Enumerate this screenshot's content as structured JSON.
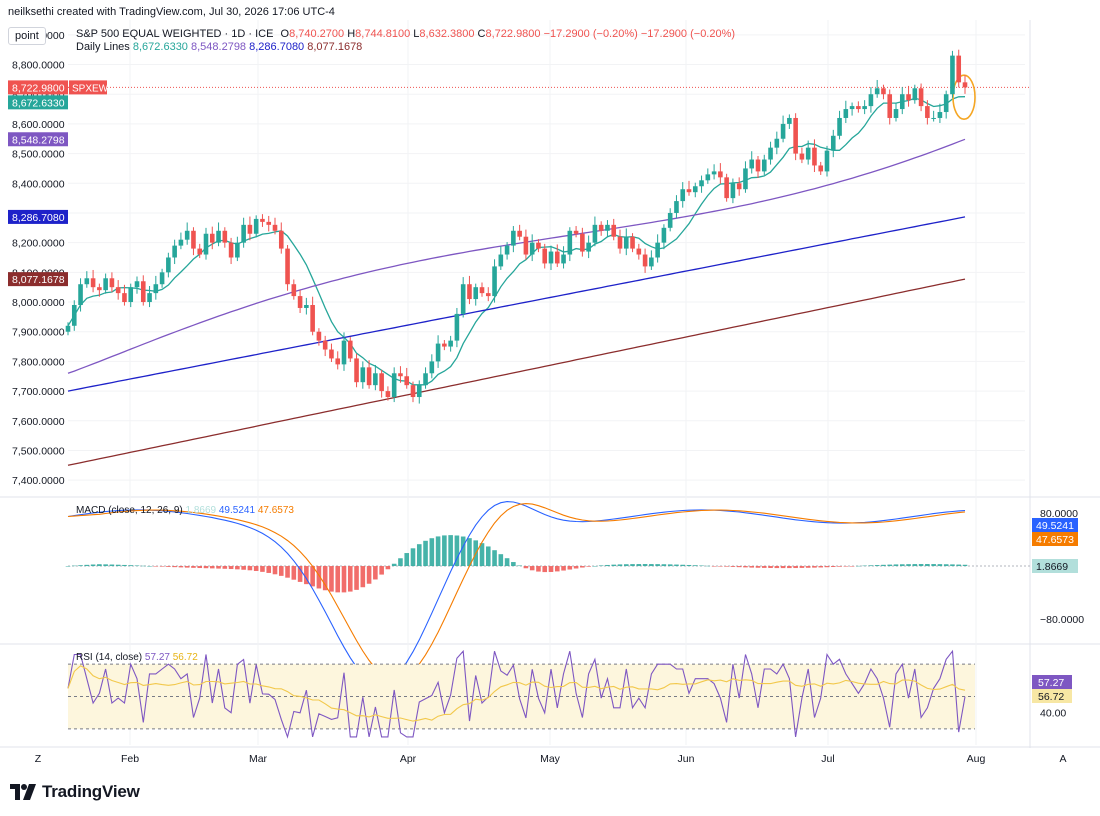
{
  "header": {
    "creator_line": "neilksethi created with TradingView.com, Jul 30, 2026 17:06 UTC-4",
    "symbol_title": "S&P 500 EQUAL WEIGHTED · 1D · ICE",
    "ohlc": {
      "o_label": "O",
      "o": "8,740.2700",
      "h_label": "H",
      "h": "8,744.8100",
      "l_label": "L",
      "l": "8,632.3800",
      "c_label": "C",
      "c": "8,722.9800",
      "change": "−17.2900 (−0.20%)",
      "change2": "−17.2900 (−0.20%)"
    },
    "daily_lines_label": "Daily Lines",
    "daily_lines_values": [
      "8,672.6330",
      "8,548.2798",
      "8,286.7080",
      "8,077.1678"
    ]
  },
  "toolbar": {
    "point_label": "point"
  },
  "footer": {
    "brand": "TradingView"
  },
  "colors": {
    "up": "#26a69a",
    "down": "#ef5350",
    "ma20": "#26a69a",
    "ma50": "#7e57c2",
    "ma100": "#1e22c9",
    "ma200": "#8b2d2d",
    "macd": "#2962ff",
    "signal": "#f57c00",
    "rsi": "#7e57c2",
    "rsi_ma": "#f7d44a",
    "rsi_band": "#fdf6dd",
    "circle": "#f5a623"
  },
  "chart_data": [
    {
      "type": "candlestick",
      "symbol": "SPXEW",
      "ylim": [
        7350,
        8950
      ],
      "yticks": [
        "7,400.0000",
        "7,500.0000",
        "7,600.0000",
        "7,700.0000",
        "7,800.0000",
        "7,900.0000",
        "8,000.0000",
        "8,100.0000",
        "8,200.0000",
        "8,300.0000",
        "8,400.0000",
        "8,500.0000",
        "8,600.0000",
        "8,700.0000",
        "8,800.0000",
        "8,900.0000"
      ],
      "xticks": [
        "Z",
        "Feb",
        "Mar",
        "Apr",
        "May",
        "Jun",
        "Jul",
        "Aug",
        "A"
      ],
      "price_labels": [
        {
          "text": "8,722.9800",
          "tag": "SPXEW",
          "value": 8722.98,
          "color": "#ef5350"
        },
        {
          "text": "8,672.6330",
          "value": 8672.633,
          "color": "#26a69a"
        },
        {
          "text": "8,548.2798",
          "value": 8548.2798,
          "color": "#7e57c2"
        },
        {
          "text": "8,286.7080",
          "value": 8286.708,
          "color": "#1e22c9"
        },
        {
          "text": "8,077.1678",
          "value": 8077.1678,
          "color": "#8b2d2d"
        }
      ],
      "closes": [
        7920,
        7990,
        8060,
        8080,
        8050,
        8040,
        8080,
        8050,
        8030,
        8000,
        8050,
        8070,
        8000,
        8030,
        8060,
        8100,
        8150,
        8190,
        8210,
        8240,
        8180,
        8160,
        8230,
        8200,
        8240,
        8200,
        8150,
        8200,
        8260,
        8230,
        8280,
        8270,
        8260,
        8240,
        8180,
        8060,
        8020,
        7980,
        7990,
        7900,
        7870,
        7840,
        7810,
        7790,
        7870,
        7810,
        7730,
        7780,
        7720,
        7760,
        7700,
        7680,
        7760,
        7750,
        7720,
        7680,
        7720,
        7760,
        7800,
        7860,
        7850,
        7870,
        7960,
        8060,
        8010,
        8050,
        8030,
        8020,
        8120,
        8160,
        8190,
        8240,
        8220,
        8160,
        8200,
        8180,
        8130,
        8170,
        8130,
        8160,
        8240,
        8230,
        8170,
        8200,
        8260,
        8240,
        8260,
        8220,
        8180,
        8220,
        8180,
        8160,
        8120,
        8150,
        8200,
        8250,
        8300,
        8340,
        8380,
        8370,
        8390,
        8410,
        8430,
        8440,
        8420,
        8350,
        8400,
        8380,
        8450,
        8480,
        8440,
        8480,
        8520,
        8550,
        8600,
        8620,
        8500,
        8480,
        8520,
        8460,
        8440,
        8510,
        8560,
        8620,
        8650,
        8660,
        8650,
        8660,
        8700,
        8720,
        8700,
        8620,
        8650,
        8700,
        8680,
        8720,
        8660,
        8620,
        8620,
        8640,
        8700,
        8830,
        8740,
        8722.98
      ],
      "ma20_end": 8672.633,
      "ma50_end": 8548.2798,
      "ma100_end": 8286.708,
      "ma200_end": 8077.1678,
      "annotation": "circle"
    },
    {
      "type": "macd",
      "title": "MACD (close, 12, 26, 9)",
      "histogram_value": "1.8669",
      "macd_value": "49.5241",
      "signal_value": "47.6573",
      "ylim": [
        -115,
        100
      ],
      "yticks": [
        "80.0000",
        "−80.0000"
      ]
    },
    {
      "type": "rsi",
      "title": "RSI (14, close)",
      "rsi_value": "57.27",
      "rsi_ma_value": "56.72",
      "ylim": [
        20,
        80
      ],
      "yticks": [
        "60.00",
        "40.00"
      ]
    }
  ]
}
